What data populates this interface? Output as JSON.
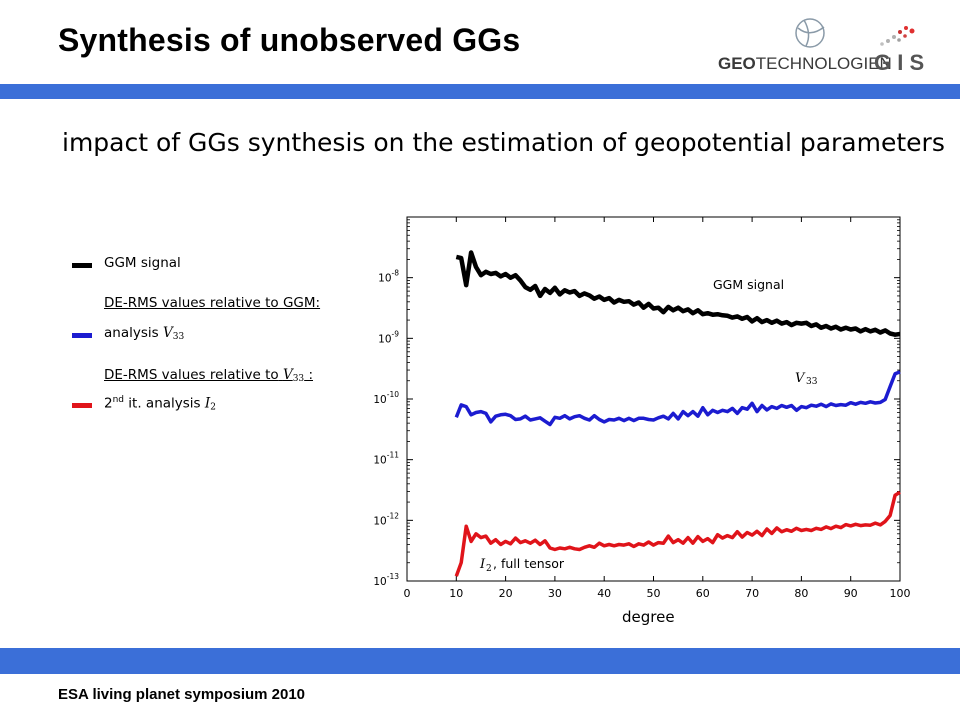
{
  "header": {
    "title": "Synthesis of unobserved GGs",
    "logo_geo": "GEO",
    "logo_tech": "TECHNOLOGIEN",
    "logo_gis": "G I S"
  },
  "subtitle": "impact of GGs synthesis on the estimation of geopotential parameters",
  "footer": "ESA living planet symposium 2010",
  "legend": {
    "signal_label": "GGM signal",
    "rms_ggm_heading": "DE-RMS values relative to GGM:",
    "analysis_label": "analysis",
    "analysis_symbol": "V",
    "analysis_sub": "33",
    "rms_v33_heading_pre": "DE-RMS values relative to",
    "rms_v33_symbol": "V",
    "rms_v33_sub": "33",
    "rms_v33_heading_post": " :",
    "second_prefix": "2",
    "second_sup": "nd",
    "second_label": " it. analysis",
    "second_symbol": "I",
    "second_sub": "2"
  },
  "colors": {
    "accent_bar": "#3b6fd8",
    "signal": "#000000",
    "v33": "#1c1cd0",
    "i2": "#e0141a"
  },
  "chart_data": {
    "type": "line",
    "xlabel": "degree",
    "ylabel": "",
    "xlim": [
      0,
      100
    ],
    "ylim": [
      1e-13,
      1e-07
    ],
    "yscale": "log",
    "x_ticks": [
      "0",
      "10",
      "20",
      "30",
      "40",
      "50",
      "60",
      "70",
      "80",
      "90",
      "100"
    ],
    "y_ticks": [
      {
        "base": "10",
        "exp": "-8"
      },
      {
        "base": "10",
        "exp": "-9"
      },
      {
        "base": "10",
        "exp": "-10"
      },
      {
        "base": "10",
        "exp": "-11"
      },
      {
        "base": "10",
        "exp": "-12"
      },
      {
        "base": "10",
        "exp": "-13"
      }
    ],
    "annotations": {
      "signal": "GGM signal",
      "v33_symbol": "V",
      "v33_sub": "33",
      "i2_symbol": "I",
      "i2_sub": "2",
      "i2_text": ", full tensor"
    },
    "x": [
      10,
      11,
      12,
      13,
      14,
      15,
      16,
      17,
      18,
      19,
      20,
      21,
      22,
      23,
      24,
      25,
      26,
      27,
      28,
      29,
      30,
      31,
      32,
      33,
      34,
      35,
      36,
      37,
      38,
      39,
      40,
      41,
      42,
      43,
      44,
      45,
      46,
      47,
      48,
      49,
      50,
      51,
      52,
      53,
      54,
      55,
      56,
      57,
      58,
      59,
      60,
      61,
      62,
      63,
      64,
      65,
      66,
      67,
      68,
      69,
      70,
      71,
      72,
      73,
      74,
      75,
      76,
      77,
      78,
      79,
      80,
      81,
      82,
      83,
      84,
      85,
      86,
      87,
      88,
      89,
      90,
      91,
      92,
      93,
      94,
      95,
      96,
      97,
      98,
      99,
      100
    ],
    "series": [
      {
        "name": "GGM signal",
        "color": "#000000",
        "values": [
          2.2e-08,
          2.1e-08,
          7.5e-09,
          2.6e-08,
          1.5e-08,
          1.1e-08,
          1.25e-08,
          1.15e-08,
          1.2e-08,
          1.05e-08,
          1.15e-08,
          1e-08,
          1.1e-08,
          9e-09,
          7e-09,
          6.3e-09,
          7.3e-09,
          5e-09,
          6.5e-09,
          5.6e-09,
          6.8e-09,
          5.3e-09,
          6.2e-09,
          5.7e-09,
          6e-09,
          5e-09,
          5.5e-09,
          5.1e-09,
          4.5e-09,
          4.9e-09,
          4.3e-09,
          4.6e-09,
          3.9e-09,
          4.3e-09,
          4e-09,
          4.1e-09,
          3.6e-09,
          3.9e-09,
          3.2e-09,
          3.7e-09,
          3.1e-09,
          3.2e-09,
          2.7e-09,
          3.3e-09,
          2.9e-09,
          3.2e-09,
          2.8e-09,
          3e-09,
          2.6e-09,
          2.9e-09,
          2.5e-09,
          2.6e-09,
          2.45e-09,
          2.5e-09,
          2.4e-09,
          2.35e-09,
          2.2e-09,
          2.3e-09,
          2.1e-09,
          2.25e-09,
          1.9e-09,
          2.15e-09,
          1.85e-09,
          2e-09,
          1.8e-09,
          1.95e-09,
          1.75e-09,
          1.85e-09,
          1.65e-09,
          1.8e-09,
          1.75e-09,
          1.8e-09,
          1.6e-09,
          1.7e-09,
          1.5e-09,
          1.6e-09,
          1.45e-09,
          1.55e-09,
          1.4e-09,
          1.5e-09,
          1.4e-09,
          1.45e-09,
          1.3e-09,
          1.42e-09,
          1.3e-09,
          1.38e-09,
          1.25e-09,
          1.35e-09,
          1.2e-09,
          1.15e-09,
          1.18e-09
        ]
      },
      {
        "name": "V33",
        "color": "#1c1cd0",
        "values": [
          5e-11,
          8e-11,
          7.5e-11,
          5.5e-11,
          6e-11,
          6.2e-11,
          5.8e-11,
          4.2e-11,
          5.2e-11,
          5.5e-11,
          5.6e-11,
          5.3e-11,
          4.6e-11,
          4.7e-11,
          5.2e-11,
          4.5e-11,
          4.7e-11,
          4.9e-11,
          4.3e-11,
          3.8e-11,
          5e-11,
          4.8e-11,
          5.3e-11,
          4.7e-11,
          5.1e-11,
          5.3e-11,
          4.8e-11,
          4.5e-11,
          5.3e-11,
          4.6e-11,
          4.2e-11,
          4.6e-11,
          4.5e-11,
          4.8e-11,
          4.4e-11,
          4.8e-11,
          4.4e-11,
          4.8e-11,
          4.8e-11,
          4.6e-11,
          4.5e-11,
          4.9e-11,
          5.2e-11,
          4.7e-11,
          5.8e-11,
          4.7e-11,
          6.2e-11,
          5.3e-11,
          6.2e-11,
          5.2e-11,
          7.2e-11,
          5.5e-11,
          6.5e-11,
          6e-11,
          6.5e-11,
          6.2e-11,
          7e-11,
          5.8e-11,
          7.2e-11,
          6.8e-11,
          8.5e-11,
          6.2e-11,
          7.8e-11,
          6.6e-11,
          7.5e-11,
          7e-11,
          7.8e-11,
          7.3e-11,
          7.8e-11,
          6.5e-11,
          7.5e-11,
          7.2e-11,
          7.9e-11,
          7.6e-11,
          8.2e-11,
          7.5e-11,
          8.3e-11,
          7.8e-11,
          8.1e-11,
          7.9e-11,
          8.7e-11,
          8.2e-11,
          8.8e-11,
          8.5e-11,
          9e-11,
          8.6e-11,
          8.8e-11,
          9.8e-11,
          1.6e-10,
          2.6e-10,
          2.8e-10
        ]
      },
      {
        "name": "I2",
        "color": "#e0141a",
        "values": [
          1.2e-13,
          2e-13,
          8e-13,
          4.5e-13,
          6e-13,
          5.2e-13,
          5.5e-13,
          4.2e-13,
          4.8e-13,
          4e-13,
          4.5e-13,
          4.1e-13,
          5.1e-13,
          4.3e-13,
          4.6e-13,
          4.2e-13,
          4.7e-13,
          4e-13,
          4.6e-13,
          3.5e-13,
          3.3e-13,
          3.5e-13,
          3.4e-13,
          3.6e-13,
          3.4e-13,
          3.3e-13,
          3.6e-13,
          3.8e-13,
          3.6e-13,
          4.2e-13,
          3.8e-13,
          4e-13,
          3.8e-13,
          4e-13,
          3.9e-13,
          4.1e-13,
          3.7e-13,
          4.1e-13,
          3.9e-13,
          4.4e-13,
          3.9e-13,
          4.3e-13,
          4.2e-13,
          5.5e-13,
          4.3e-13,
          4.8e-13,
          4.2e-13,
          5.2e-13,
          4.2e-13,
          5.4e-13,
          4.5e-13,
          5e-13,
          4.3e-13,
          5.8e-13,
          5.1e-13,
          5.6e-13,
          5.2e-13,
          6.5e-13,
          5.3e-13,
          6.3e-13,
          5.7e-13,
          6.6e-13,
          5.6e-13,
          7.2e-13,
          6.1e-13,
          7.5e-13,
          6.5e-13,
          7e-13,
          6.6e-13,
          7.4e-13,
          6.8e-13,
          7.1e-13,
          6.8e-13,
          7.4e-13,
          7.1e-13,
          7.8e-13,
          7.3e-13,
          8e-13,
          7.6e-13,
          8.5e-13,
          8.1e-13,
          8.6e-13,
          8.2e-13,
          8.4e-13,
          8.3e-13,
          9e-13,
          8.4e-13,
          9.6e-13,
          1.2e-12,
          2.6e-12,
          2.9e-12
        ]
      }
    ]
  }
}
